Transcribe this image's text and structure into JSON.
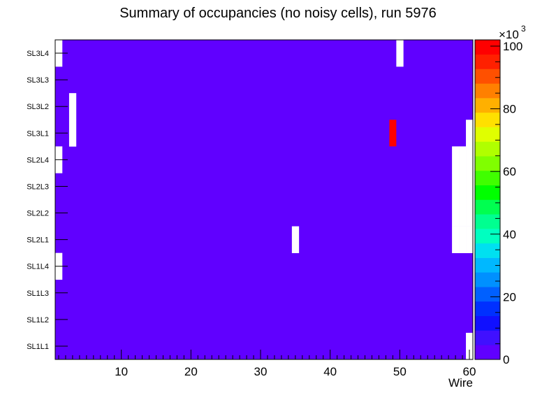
{
  "chart_data": {
    "type": "heatmap",
    "title": "Summary of occupancies (no noisy cells), run 5976",
    "xlabel": "Wire",
    "ylabel": "",
    "x_range": [
      0.5,
      60.5
    ],
    "x_ticks": [
      10,
      20,
      30,
      40,
      50,
      60
    ],
    "y_categories": [
      "SL1L1",
      "SL1L2",
      "SL1L3",
      "SL1L4",
      "SL2L1",
      "SL2L2",
      "SL2L3",
      "SL2L4",
      "SL3L1",
      "SL3L2",
      "SL3L3",
      "SL3L4"
    ],
    "default_value": 1000,
    "empty_cells": [
      {
        "layer": "SL3L4",
        "wires": [
          1,
          50
        ]
      },
      {
        "layer": "SL3L2",
        "wires": [
          3
        ]
      },
      {
        "layer": "SL3L1",
        "wires": [
          3,
          60
        ]
      },
      {
        "layer": "SL2L4",
        "wires": [
          1,
          58,
          59,
          60
        ]
      },
      {
        "layer": "SL2L3",
        "wires": [
          58,
          59,
          60
        ]
      },
      {
        "layer": "SL2L2",
        "wires": [
          58,
          59,
          60
        ]
      },
      {
        "layer": "SL2L1",
        "wires": [
          35,
          58,
          59,
          60
        ]
      },
      {
        "layer": "SL1L4",
        "wires": [
          1
        ]
      },
      {
        "layer": "SL1L1",
        "wires": [
          60
        ]
      }
    ],
    "hot_cells": [
      {
        "layer": "SL3L1",
        "wire": 49,
        "value": 101000
      }
    ],
    "z_range": [
      0,
      102000
    ],
    "z_ticks": [
      0,
      20,
      40,
      60,
      80,
      100
    ],
    "z_multiplier": "×10",
    "z_exponent": "3",
    "palette": [
      "#6000ff",
      "#4010ff",
      "#1010ff",
      "#0030ff",
      "#0060ff",
      "#0090ff",
      "#00b8ff",
      "#00e0f0",
      "#00ffc0",
      "#00ff90",
      "#00ff50",
      "#00ff00",
      "#40ff00",
      "#80ff00",
      "#b0ff00",
      "#e0ff00",
      "#ffe000",
      "#ffb000",
      "#ff8000",
      "#ff5000",
      "#ff2000",
      "#ff0000"
    ]
  }
}
